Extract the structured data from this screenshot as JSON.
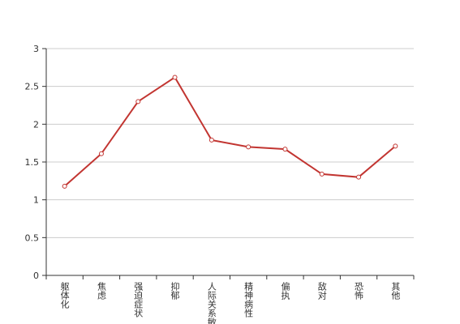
{
  "chart_data": {
    "type": "line",
    "categories": [
      "躯体化",
      "焦虑",
      "强迫症状",
      "抑郁",
      "人际关系敏感",
      "精神病性",
      "偏执",
      "敌对",
      "恐怖",
      "其他"
    ],
    "series": [
      {
        "color": "#c23531",
        "values": [
          1.18,
          1.61,
          2.3,
          2.62,
          1.79,
          1.7,
          1.67,
          1.34,
          1.3,
          1.71
        ]
      }
    ],
    "ylim": [
      0,
      3
    ],
    "yticks": [
      0,
      0.5,
      1,
      1.5,
      2,
      2.5,
      3
    ],
    "grid": true
  }
}
